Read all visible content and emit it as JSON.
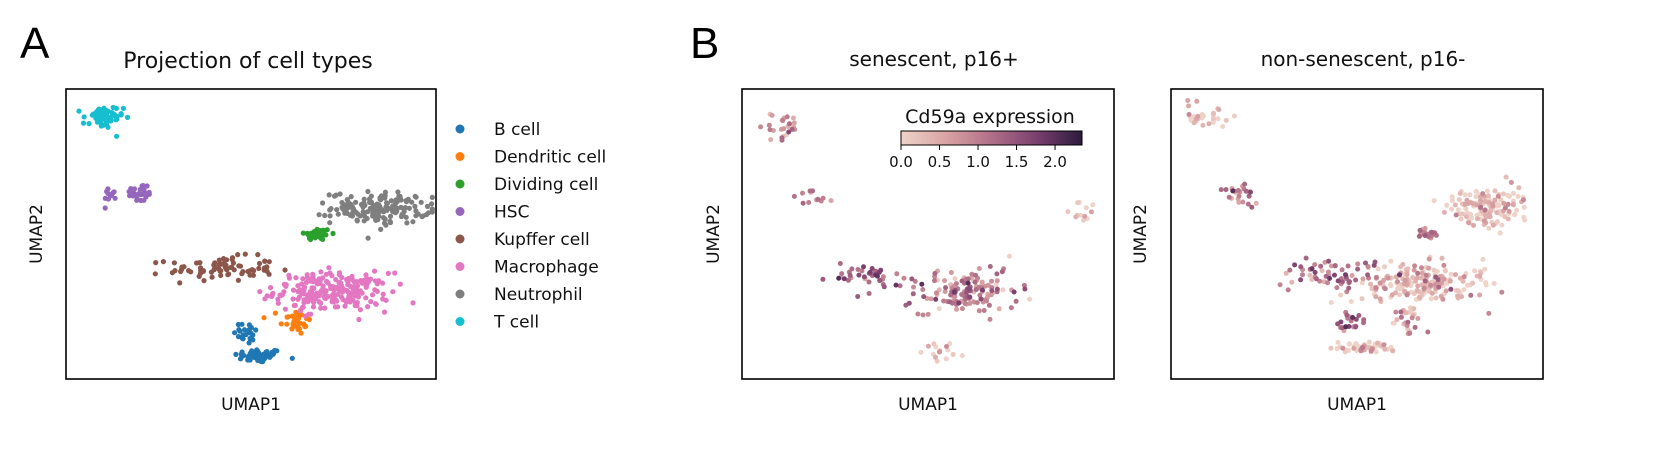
{
  "panels": {
    "a": {
      "letter": "A",
      "title": "Projection of cell types",
      "xlabel": "UMAP1",
      "ylabel": "UMAP2"
    },
    "b": {
      "letter": "B",
      "left_title": "senescent, p16+",
      "right_title": "non-senescent, p16-",
      "xlabel": "UMAP1",
      "ylabel": "UMAP2",
      "colorbar": {
        "label": "Cd59a expression",
        "range": [
          0.0,
          2.35
        ],
        "ticks": [
          "0.0",
          "0.5",
          "1.0",
          "1.5",
          "2.0"
        ],
        "tick_values": [
          0.0,
          0.5,
          1.0,
          1.5,
          2.0
        ],
        "colors": [
          "#efd3c9",
          "#d9a3a3",
          "#b06f88",
          "#7a3f6e",
          "#2b1b3d"
        ]
      }
    }
  },
  "chart_data": [
    {
      "type": "scatter",
      "title": "Projection of cell types",
      "xlabel": "UMAP1",
      "ylabel": "UMAP2",
      "xlim": [
        0,
        10
      ],
      "ylim": [
        0,
        10
      ],
      "legend_position": "right",
      "series": [
        {
          "name": "B cell",
          "color": "#1f77b4",
          "clusters": [
            {
              "cx": 5.2,
              "cy": 0.8,
              "sx": 0.55,
              "sy": 0.2,
              "n": 50
            },
            {
              "cx": 4.9,
              "cy": 1.6,
              "sx": 0.3,
              "sy": 0.35,
              "n": 22
            }
          ]
        },
        {
          "name": "Dendritic cell",
          "color": "#ff7f0e",
          "clusters": [
            {
              "cx": 6.2,
              "cy": 2.0,
              "sx": 0.35,
              "sy": 0.4,
              "n": 35
            }
          ]
        },
        {
          "name": "Dividing cell",
          "color": "#2ca02c",
          "clusters": [
            {
              "cx": 6.8,
              "cy": 5.0,
              "sx": 0.3,
              "sy": 0.18,
              "n": 40
            }
          ]
        },
        {
          "name": "HSC",
          "color": "#9467bd",
          "clusters": [
            {
              "cx": 2.0,
              "cy": 6.4,
              "sx": 0.3,
              "sy": 0.3,
              "n": 30
            },
            {
              "cx": 1.2,
              "cy": 6.4,
              "sx": 0.15,
              "sy": 0.2,
              "n": 12
            }
          ]
        },
        {
          "name": "Kupffer cell",
          "color": "#8c564b",
          "clusters": [
            {
              "cx": 4.2,
              "cy": 3.8,
              "sx": 1.2,
              "sy": 0.35,
              "n": 80
            }
          ]
        },
        {
          "name": "Macrophage",
          "color": "#e377c2",
          "clusters": [
            {
              "cx": 7.2,
              "cy": 3.0,
              "sx": 1.3,
              "sy": 0.55,
              "n": 230
            }
          ]
        },
        {
          "name": "Neutrophil",
          "color": "#7f7f7f",
          "clusters": [
            {
              "cx": 8.5,
              "cy": 5.9,
              "sx": 1.1,
              "sy": 0.45,
              "n": 160
            }
          ]
        },
        {
          "name": "T cell",
          "color": "#17becf",
          "clusters": [
            {
              "cx": 1.0,
              "cy": 9.0,
              "sx": 0.45,
              "sy": 0.35,
              "n": 60
            }
          ]
        }
      ]
    },
    {
      "type": "scatter",
      "title": "senescent, p16+",
      "xlabel": "UMAP1",
      "ylabel": "UMAP2",
      "xlim": [
        0,
        10
      ],
      "ylim": [
        0,
        10
      ],
      "color_by": "Cd59a expression",
      "color_range": [
        0.0,
        2.35
      ],
      "groups": [
        {
          "cx": 6.0,
          "cy": 3.0,
          "sx": 1.2,
          "sy": 0.6,
          "n": 140,
          "mean_expr": 1.0
        },
        {
          "cx": 3.5,
          "cy": 3.5,
          "sx": 0.8,
          "sy": 0.35,
          "n": 40,
          "mean_expr": 1.3
        },
        {
          "cx": 1.0,
          "cy": 8.8,
          "sx": 0.5,
          "sy": 0.4,
          "n": 25,
          "mean_expr": 0.7
        },
        {
          "cx": 1.8,
          "cy": 6.2,
          "sx": 0.5,
          "sy": 0.35,
          "n": 12,
          "mean_expr": 1.0
        },
        {
          "cx": 5.3,
          "cy": 1.0,
          "sx": 0.5,
          "sy": 0.4,
          "n": 15,
          "mean_expr": 0.2
        },
        {
          "cx": 9.2,
          "cy": 5.8,
          "sx": 0.3,
          "sy": 0.3,
          "n": 12,
          "mean_expr": 0.1
        }
      ]
    },
    {
      "type": "scatter",
      "title": "non-senescent, p16-",
      "xlabel": "UMAP1",
      "ylabel": "UMAP2",
      "xlim": [
        0,
        10
      ],
      "ylim": [
        0,
        10
      ],
      "color_by": "Cd59a expression",
      "color_range": [
        0.0,
        2.35
      ],
      "groups": [
        {
          "cx": 8.5,
          "cy": 6.0,
          "sx": 1.0,
          "sy": 0.5,
          "n": 140,
          "mean_expr": 0.1
        },
        {
          "cx": 6.8,
          "cy": 3.3,
          "sx": 1.4,
          "sy": 0.6,
          "n": 200,
          "mean_expr": 0.25
        },
        {
          "cx": 4.3,
          "cy": 3.6,
          "sx": 1.2,
          "sy": 0.4,
          "n": 60,
          "mean_expr": 1.1
        },
        {
          "cx": 5.2,
          "cy": 1.1,
          "sx": 0.5,
          "sy": 0.25,
          "n": 50,
          "mean_expr": 0.1
        },
        {
          "cx": 6.3,
          "cy": 2.0,
          "sx": 0.35,
          "sy": 0.35,
          "n": 25,
          "mean_expr": 0.6
        },
        {
          "cx": 4.9,
          "cy": 1.9,
          "sx": 0.3,
          "sy": 0.3,
          "n": 20,
          "mean_expr": 1.3
        },
        {
          "cx": 6.9,
          "cy": 5.0,
          "sx": 0.3,
          "sy": 0.2,
          "n": 25,
          "mean_expr": 0.8
        },
        {
          "cx": 1.9,
          "cy": 6.4,
          "sx": 0.35,
          "sy": 0.3,
          "n": 25,
          "mean_expr": 0.9
        },
        {
          "cx": 1.0,
          "cy": 9.0,
          "sx": 0.45,
          "sy": 0.35,
          "n": 30,
          "mean_expr": 0.05
        }
      ]
    }
  ]
}
